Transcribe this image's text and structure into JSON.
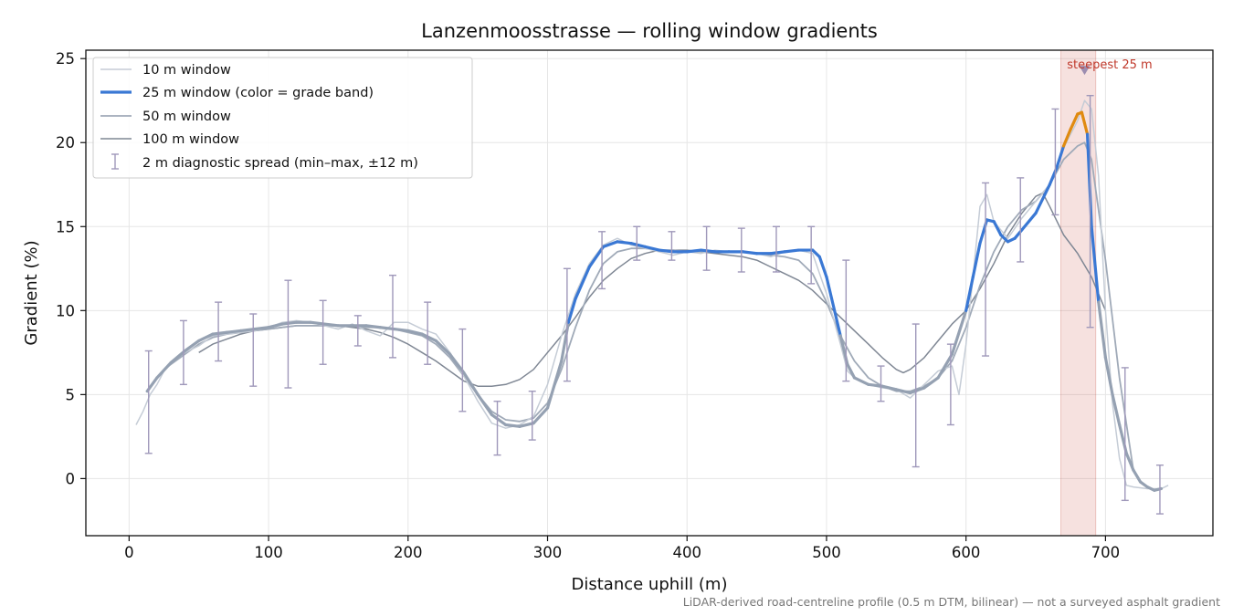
{
  "chart_data": {
    "type": "line",
    "title": "Lanzenmoosstrasse — rolling window gradients",
    "xlabel": "Distance uphill (m)",
    "ylabel": "Gradient (%)",
    "footnote": "LiDAR-derived road-centreline profile (0.5 m DTM, bilinear) — not a surveyed asphalt gradient",
    "xlim": [
      -31,
      777
    ],
    "ylim": [
      -3.4,
      25.5
    ],
    "x_ticks": [
      0,
      100,
      200,
      300,
      400,
      500,
      600,
      700
    ],
    "y_ticks": [
      0,
      5,
      10,
      15,
      20,
      25
    ],
    "grid": true,
    "legend_position": "top-left",
    "highlight_band": {
      "x_start": 668,
      "x_end": 693,
      "label": "steepest 25 m",
      "marker_x": 685,
      "marker_y": 24.3,
      "color": "#c0392b"
    },
    "series": [
      {
        "name": "10 m window",
        "color": "#c5ccd6",
        "x": [
          5,
          10,
          15,
          20,
          25,
          30,
          40,
          50,
          60,
          70,
          80,
          90,
          100,
          110,
          120,
          130,
          140,
          150,
          160,
          170,
          180,
          190,
          200,
          210,
          220,
          230,
          240,
          250,
          260,
          270,
          280,
          290,
          300,
          310,
          320,
          330,
          340,
          350,
          360,
          370,
          380,
          390,
          400,
          410,
          420,
          430,
          440,
          450,
          460,
          470,
          480,
          490,
          500,
          510,
          515,
          520,
          530,
          540,
          550,
          560,
          570,
          580,
          590,
          595,
          600,
          605,
          610,
          615,
          620,
          630,
          640,
          650,
          660,
          670,
          680,
          685,
          690,
          695,
          700,
          705,
          710,
          715,
          720,
          730,
          740,
          745
        ],
        "y": [
          3.2,
          4.0,
          5.0,
          5.6,
          6.4,
          6.9,
          7.5,
          7.9,
          8.5,
          8.6,
          8.7,
          8.8,
          9.0,
          9.3,
          9.4,
          9.3,
          9.1,
          8.9,
          9.2,
          8.8,
          8.5,
          9.3,
          9.3,
          8.9,
          8.6,
          7.5,
          6.1,
          4.6,
          3.3,
          3.0,
          3.2,
          3.7,
          5.6,
          8.5,
          11.0,
          12.8,
          13.9,
          14.3,
          13.9,
          13.7,
          13.5,
          13.3,
          13.5,
          13.4,
          13.6,
          13.5,
          13.5,
          13.4,
          13.2,
          13.5,
          13.6,
          13.4,
          11.0,
          8.0,
          6.4,
          6.0,
          5.6,
          5.4,
          5.3,
          4.8,
          5.6,
          6.4,
          6.7,
          5.0,
          8.0,
          12.0,
          16.2,
          16.9,
          15.3,
          14.3,
          15.5,
          16.5,
          17.5,
          19.7,
          21.3,
          22.5,
          22.0,
          18.0,
          10.0,
          4.5,
          1.2,
          -0.4,
          -0.5,
          -0.6,
          -0.6,
          -0.4
        ]
      },
      {
        "name": "25 m window (color = grade band)",
        "color": "#3a78d4",
        "grade_bands": [
          {
            "min": 0,
            "max": 10,
            "color": "#95a1b2"
          },
          {
            "min": 10,
            "max": 20,
            "color": "#3a78d4"
          },
          {
            "min": 20,
            "max": 30,
            "color": "#e08a10"
          }
        ],
        "x": [
          13,
          20,
          30,
          40,
          50,
          60,
          70,
          80,
          90,
          100,
          110,
          120,
          130,
          140,
          150,
          160,
          170,
          180,
          190,
          200,
          210,
          220,
          230,
          240,
          250,
          260,
          270,
          280,
          290,
          300,
          310,
          315,
          320,
          330,
          340,
          350,
          360,
          370,
          380,
          390,
          400,
          410,
          420,
          430,
          440,
          450,
          460,
          470,
          480,
          490,
          495,
          500,
          510,
          515,
          520,
          530,
          540,
          550,
          560,
          570,
          580,
          590,
          600,
          605,
          610,
          615,
          620,
          625,
          630,
          635,
          640,
          650,
          660,
          665,
          670,
          675,
          680,
          683,
          687,
          690,
          695,
          700,
          705,
          710,
          715,
          720,
          725,
          730,
          735,
          740
        ],
        "y": [
          5.2,
          6.0,
          6.9,
          7.6,
          8.2,
          8.6,
          8.7,
          8.8,
          8.9,
          9.0,
          9.2,
          9.3,
          9.3,
          9.2,
          9.1,
          9.1,
          9.1,
          9.0,
          8.9,
          8.8,
          8.6,
          8.2,
          7.4,
          6.3,
          5.0,
          3.8,
          3.2,
          3.1,
          3.3,
          4.2,
          7.0,
          9.3,
          10.7,
          12.6,
          13.8,
          14.1,
          14.0,
          13.8,
          13.6,
          13.5,
          13.5,
          13.6,
          13.5,
          13.5,
          13.5,
          13.4,
          13.4,
          13.5,
          13.6,
          13.6,
          13.2,
          12.0,
          8.5,
          6.8,
          6.0,
          5.6,
          5.5,
          5.3,
          5.1,
          5.4,
          6.0,
          7.4,
          10.0,
          12.0,
          14.0,
          15.4,
          15.3,
          14.5,
          14.1,
          14.3,
          14.8,
          15.8,
          17.5,
          18.5,
          19.8,
          20.8,
          21.7,
          21.8,
          20.5,
          15.0,
          10.5,
          7.2,
          5.0,
          3.2,
          1.5,
          0.5,
          -0.2,
          -0.5,
          -0.7,
          -0.6
        ]
      },
      {
        "name": "50 m window",
        "color": "#a0aab8",
        "x": [
          25,
          30,
          40,
          50,
          60,
          70,
          80,
          90,
          100,
          110,
          120,
          130,
          140,
          150,
          160,
          170,
          180,
          190,
          200,
          210,
          220,
          230,
          240,
          250,
          260,
          270,
          280,
          290,
          300,
          310,
          320,
          330,
          340,
          350,
          360,
          370,
          380,
          390,
          400,
          410,
          420,
          430,
          440,
          450,
          460,
          470,
          480,
          490,
          500,
          510,
          520,
          530,
          540,
          550,
          560,
          570,
          580,
          590,
          600,
          610,
          620,
          630,
          640,
          650,
          660,
          670,
          680,
          685,
          690,
          700,
          710,
          720
        ],
        "y": [
          6.5,
          6.8,
          7.4,
          8.0,
          8.4,
          8.6,
          8.7,
          8.8,
          8.9,
          9.0,
          9.1,
          9.1,
          9.1,
          9.1,
          9.1,
          9.0,
          9.0,
          8.9,
          8.7,
          8.5,
          8.0,
          7.2,
          6.1,
          5.0,
          4.0,
          3.5,
          3.4,
          3.6,
          4.5,
          6.5,
          9.0,
          11.2,
          12.8,
          13.5,
          13.7,
          13.7,
          13.6,
          13.6,
          13.5,
          13.5,
          13.5,
          13.5,
          13.5,
          13.4,
          13.3,
          13.2,
          13.0,
          12.2,
          10.5,
          8.5,
          7.0,
          6.0,
          5.5,
          5.2,
          5.2,
          5.5,
          6.0,
          7.0,
          9.0,
          11.5,
          13.5,
          15.0,
          16.0,
          16.5,
          17.5,
          19.0,
          19.8,
          20.0,
          19.0,
          13.0,
          6.0,
          0.5
        ]
      },
      {
        "name": "100 m window",
        "color": "#7f8794",
        "x": [
          50,
          60,
          70,
          80,
          90,
          100,
          110,
          120,
          130,
          140,
          150,
          160,
          170,
          180,
          190,
          200,
          210,
          220,
          230,
          240,
          250,
          260,
          270,
          280,
          290,
          300,
          310,
          320,
          330,
          340,
          350,
          360,
          370,
          380,
          390,
          400,
          410,
          420,
          430,
          440,
          450,
          460,
          470,
          480,
          490,
          500,
          510,
          520,
          530,
          540,
          550,
          555,
          560,
          570,
          580,
          590,
          600,
          610,
          620,
          630,
          640,
          650,
          655,
          660,
          670,
          680,
          690,
          700
        ],
        "y": [
          7.5,
          8.0,
          8.3,
          8.6,
          8.8,
          8.9,
          9.0,
          9.1,
          9.1,
          9.1,
          9.1,
          9.0,
          8.9,
          8.7,
          8.4,
          8.0,
          7.5,
          7.0,
          6.4,
          5.8,
          5.5,
          5.5,
          5.6,
          5.9,
          6.5,
          7.5,
          8.5,
          9.6,
          10.8,
          11.8,
          12.5,
          13.1,
          13.4,
          13.6,
          13.6,
          13.6,
          13.5,
          13.4,
          13.3,
          13.2,
          13.0,
          12.6,
          12.2,
          11.8,
          11.2,
          10.4,
          9.6,
          8.8,
          8.0,
          7.2,
          6.5,
          6.3,
          6.5,
          7.2,
          8.2,
          9.2,
          10.0,
          11.3,
          12.8,
          14.5,
          15.8,
          16.8,
          17.0,
          16.2,
          14.5,
          13.4,
          12.0,
          10.0
        ]
      }
    ],
    "error_bars": {
      "name": "2 m diagnostic spread (min–max, ±12 m)",
      "color": "#9f98ba",
      "x": [
        14,
        39,
        64,
        89,
        114,
        139,
        164,
        189,
        214,
        239,
        264,
        289,
        314,
        339,
        364,
        389,
        414,
        439,
        464,
        489,
        514,
        539,
        564,
        589,
        614,
        639,
        664,
        689,
        714,
        739
      ],
      "lo": [
        1.5,
        5.6,
        7.0,
        5.5,
        5.4,
        6.8,
        7.9,
        7.2,
        6.8,
        4.0,
        1.4,
        2.3,
        5.8,
        11.3,
        13.0,
        13.0,
        12.4,
        12.3,
        12.3,
        11.6,
        5.8,
        4.6,
        0.7,
        3.2,
        7.3,
        12.9,
        15.7,
        9.0,
        -1.3,
        -2.1
      ],
      "hi": [
        7.6,
        9.4,
        10.5,
        9.8,
        11.8,
        10.6,
        9.7,
        12.1,
        10.5,
        8.9,
        4.6,
        5.2,
        12.5,
        14.7,
        15.0,
        14.7,
        15.0,
        14.9,
        15.0,
        15.0,
        13.0,
        6.7,
        9.2,
        8.0,
        17.6,
        17.9,
        22.0,
        22.8,
        6.6,
        0.8
      ]
    }
  }
}
